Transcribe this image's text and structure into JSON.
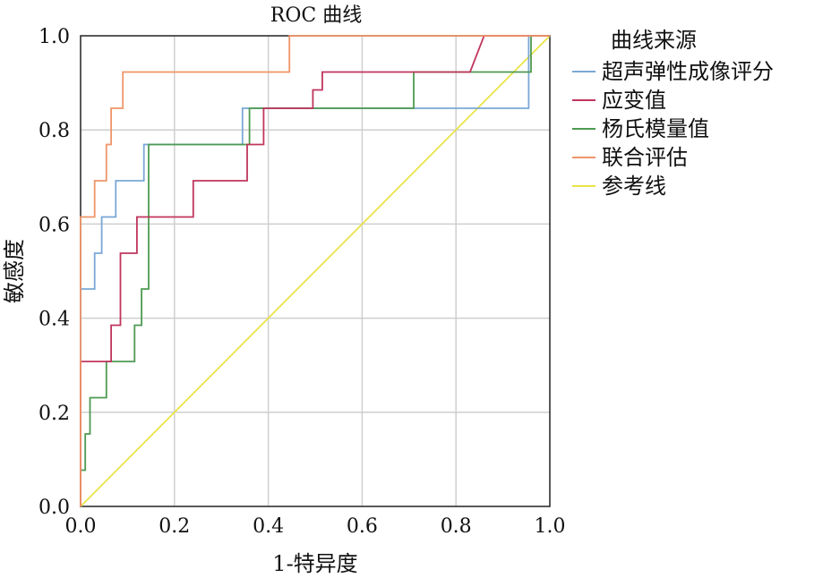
{
  "chart_data": {
    "type": "line",
    "title": "ROC 曲线",
    "xlabel": "1-特异度",
    "ylabel": "敏感度",
    "xlim": [
      0,
      1
    ],
    "ylim": [
      0,
      1
    ],
    "xticks": [
      "0.0",
      "0.2",
      "0.4",
      "0.6",
      "0.8",
      "1.0"
    ],
    "yticks": [
      "0.0",
      "0.2",
      "0.4",
      "0.6",
      "0.8",
      "1.0"
    ],
    "grid": true,
    "legend": {
      "title": "曲线来源",
      "placement": "right"
    },
    "series": [
      {
        "name": "超声弹性成像评分",
        "color": "#7aa7d6",
        "points": [
          [
            0,
            0
          ],
          [
            0,
            0.462
          ],
          [
            0.03,
            0.462
          ],
          [
            0.03,
            0.538
          ],
          [
            0.045,
            0.538
          ],
          [
            0.045,
            0.615
          ],
          [
            0.075,
            0.615
          ],
          [
            0.075,
            0.692
          ],
          [
            0.135,
            0.692
          ],
          [
            0.135,
            0.769
          ],
          [
            0.345,
            0.769
          ],
          [
            0.345,
            0.846
          ],
          [
            0.955,
            0.846
          ],
          [
            0.955,
            1.0
          ],
          [
            1.0,
            1.0
          ]
        ]
      },
      {
        "name": "应变值",
        "color": "#c0365d",
        "points": [
          [
            0,
            0
          ],
          [
            0,
            0.308
          ],
          [
            0.065,
            0.308
          ],
          [
            0.065,
            0.385
          ],
          [
            0.085,
            0.385
          ],
          [
            0.085,
            0.538
          ],
          [
            0.12,
            0.538
          ],
          [
            0.12,
            0.615
          ],
          [
            0.24,
            0.615
          ],
          [
            0.24,
            0.692
          ],
          [
            0.355,
            0.692
          ],
          [
            0.355,
            0.769
          ],
          [
            0.39,
            0.769
          ],
          [
            0.39,
            0.846
          ],
          [
            0.495,
            0.846
          ],
          [
            0.495,
            0.885
          ],
          [
            0.515,
            0.885
          ],
          [
            0.515,
            0.923
          ],
          [
            0.83,
            0.923
          ],
          [
            0.86,
            1.0
          ],
          [
            1.0,
            1.0
          ]
        ]
      },
      {
        "name": "杨氏模量值",
        "color": "#4e9a52",
        "points": [
          [
            0,
            0
          ],
          [
            0,
            0.077
          ],
          [
            0.01,
            0.077
          ],
          [
            0.01,
            0.154
          ],
          [
            0.02,
            0.154
          ],
          [
            0.02,
            0.231
          ],
          [
            0.055,
            0.231
          ],
          [
            0.055,
            0.308
          ],
          [
            0.115,
            0.308
          ],
          [
            0.115,
            0.385
          ],
          [
            0.13,
            0.385
          ],
          [
            0.13,
            0.462
          ],
          [
            0.145,
            0.462
          ],
          [
            0.145,
            0.769
          ],
          [
            0.36,
            0.769
          ],
          [
            0.36,
            0.846
          ],
          [
            0.71,
            0.846
          ],
          [
            0.71,
            0.923
          ],
          [
            0.96,
            0.923
          ],
          [
            0.96,
            1.0
          ],
          [
            1.0,
            1.0
          ]
        ]
      },
      {
        "name": "联合评估",
        "color": "#f0956a",
        "points": [
          [
            0,
            0
          ],
          [
            0,
            0.615
          ],
          [
            0.03,
            0.615
          ],
          [
            0.03,
            0.692
          ],
          [
            0.055,
            0.692
          ],
          [
            0.055,
            0.769
          ],
          [
            0.065,
            0.769
          ],
          [
            0.065,
            0.846
          ],
          [
            0.09,
            0.846
          ],
          [
            0.09,
            0.923
          ],
          [
            0.445,
            0.923
          ],
          [
            0.445,
            1.0
          ],
          [
            1.0,
            1.0
          ]
        ]
      },
      {
        "name": "参考线",
        "color": "#e8e44a",
        "points": [
          [
            0,
            0
          ],
          [
            1,
            1
          ]
        ]
      }
    ]
  }
}
